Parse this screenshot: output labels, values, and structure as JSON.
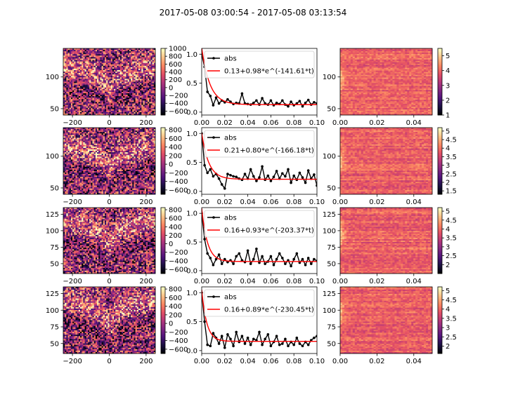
{
  "figure": {
    "suptitle": "2017-05-08 03:00:54 - 2017-05-08 03:13:54"
  },
  "colormap": {
    "name": "magma",
    "stops": [
      "#000004",
      "#1c1044",
      "#4f127b",
      "#812581",
      "#b5367a",
      "#e55064",
      "#fb8761",
      "#fec287",
      "#fcfdbf"
    ]
  },
  "chart_data": [
    {
      "type": "heatmap",
      "row": 0,
      "col": 0,
      "xlim": [
        -250,
        250
      ],
      "ylim": [
        40,
        145
      ],
      "xticks": [
        -200,
        0,
        200
      ],
      "yticks": [
        50,
        100
      ],
      "colorbar": {
        "vmin": -700,
        "vmax": 1000,
        "ticks": [
          -600,
          -400,
          -200,
          0,
          200,
          400,
          600,
          800,
          1000
        ]
      }
    },
    {
      "type": "line",
      "row": 0,
      "col": 1,
      "xlim": [
        0,
        0.1
      ],
      "ylim": [
        -0.05,
        1.1
      ],
      "xticks": [
        "0.00",
        "0.02",
        "0.04",
        "0.06",
        "0.08",
        "0.10"
      ],
      "yticks": [
        "0.0",
        "0.5",
        "1.0"
      ],
      "series": [
        {
          "name": "abs",
          "color": "#000000",
          "marker": "o",
          "x": [
            0.0,
            0.0025,
            0.005,
            0.0075,
            0.01,
            0.0125,
            0.015,
            0.0175,
            0.02,
            0.0225,
            0.025,
            0.0275,
            0.03,
            0.0325,
            0.035,
            0.0375,
            0.04,
            0.0425,
            0.045,
            0.0475,
            0.05,
            0.0525,
            0.055,
            0.0575,
            0.06,
            0.0625,
            0.065,
            0.0675,
            0.07,
            0.0725,
            0.075,
            0.0775,
            0.08,
            0.0825,
            0.085,
            0.0875,
            0.09,
            0.0925,
            0.095,
            0.0975,
            0.1
          ],
          "y": [
            1.0,
            0.78,
            0.35,
            0.28,
            0.12,
            0.25,
            0.15,
            0.2,
            0.17,
            0.22,
            0.18,
            0.14,
            0.16,
            0.15,
            0.32,
            0.15,
            0.14,
            0.13,
            0.16,
            0.2,
            0.13,
            0.24,
            0.15,
            0.13,
            0.2,
            0.12,
            0.16,
            0.14,
            0.2,
            0.13,
            0.1,
            0.18,
            0.12,
            0.15,
            0.19,
            0.1,
            0.16,
            0.21,
            0.13,
            0.17,
            0.15
          ]
        },
        {
          "name": "0.13+0.98*e^(-141.61*t)",
          "color": "#ff0000",
          "fit": {
            "a": 0.13,
            "b": 0.98,
            "k": 141.61
          }
        }
      ]
    },
    {
      "type": "heatmap",
      "row": 0,
      "col": 2,
      "xlim": [
        0,
        0.05
      ],
      "ylim": [
        40,
        145
      ],
      "xticks": [
        "0.00",
        "0.02",
        "0.04"
      ],
      "yticks": [
        50,
        100
      ],
      "colorbar": {
        "vmin": 1,
        "vmax": 5.5,
        "ticks": [
          1,
          2,
          3,
          4,
          5
        ]
      }
    },
    {
      "type": "heatmap",
      "row": 1,
      "col": 0,
      "xlim": [
        -250,
        250
      ],
      "ylim": [
        40,
        145
      ],
      "xticks": [
        -200,
        0,
        200
      ],
      "yticks": [
        50,
        100
      ],
      "colorbar": {
        "vmin": -700,
        "vmax": 850,
        "ticks": [
          -600,
          -400,
          -200,
          0,
          200,
          400,
          600,
          800
        ]
      }
    },
    {
      "type": "line",
      "row": 1,
      "col": 1,
      "xlim": [
        0,
        0.1
      ],
      "ylim": [
        -0.05,
        1.1
      ],
      "xticks": [
        "0.00",
        "0.02",
        "0.04",
        "0.06",
        "0.08",
        "0.10"
      ],
      "yticks": [
        "0.0",
        "0.5",
        "1.0"
      ],
      "series": [
        {
          "name": "abs",
          "color": "#000000",
          "marker": "o",
          "x": [
            0.0,
            0.0025,
            0.005,
            0.0075,
            0.01,
            0.0125,
            0.015,
            0.0175,
            0.02,
            0.0225,
            0.025,
            0.0275,
            0.03,
            0.0325,
            0.035,
            0.0375,
            0.04,
            0.0425,
            0.045,
            0.0475,
            0.05,
            0.0525,
            0.055,
            0.0575,
            0.06,
            0.0625,
            0.065,
            0.0675,
            0.07,
            0.0725,
            0.075,
            0.0775,
            0.08,
            0.0825,
            0.085,
            0.0875,
            0.09,
            0.0925,
            0.095,
            0.0975,
            0.1
          ],
          "y": [
            1.0,
            0.45,
            0.32,
            0.38,
            0.26,
            0.3,
            0.22,
            0.12,
            0.05,
            0.3,
            0.28,
            0.26,
            0.25,
            0.22,
            0.2,
            0.3,
            0.22,
            0.38,
            0.26,
            0.18,
            0.24,
            0.43,
            0.2,
            0.27,
            0.18,
            0.25,
            0.35,
            0.22,
            0.31,
            0.26,
            0.38,
            0.15,
            0.27,
            0.2,
            0.32,
            0.24,
            0.15,
            0.36,
            0.22,
            0.29,
            0.1
          ]
        },
        {
          "name": "0.21+0.80*e^(-166.18*t)",
          "color": "#ff0000",
          "fit": {
            "a": 0.21,
            "b": 0.8,
            "k": 166.18
          }
        }
      ]
    },
    {
      "type": "heatmap",
      "row": 1,
      "col": 2,
      "xlim": [
        0,
        0.05
      ],
      "ylim": [
        40,
        145
      ],
      "xticks": [
        "0.00",
        "0.02",
        "0.04"
      ],
      "yticks": [
        50,
        100
      ],
      "colorbar": {
        "vmin": 1.3,
        "vmax": 5.2,
        "ticks": [
          1.5,
          2.0,
          2.5,
          3.0,
          3.5,
          4.0,
          4.5,
          5.0
        ]
      }
    },
    {
      "type": "heatmap",
      "row": 2,
      "col": 0,
      "xlim": [
        -250,
        250
      ],
      "ylim": [
        35,
        135
      ],
      "xticks": [
        -200,
        0,
        200
      ],
      "yticks": [
        50,
        75,
        100,
        125
      ],
      "colorbar": {
        "vmin": -700,
        "vmax": 850,
        "ticks": [
          -600,
          -400,
          -200,
          0,
          200,
          400,
          600,
          800
        ]
      }
    },
    {
      "type": "line",
      "row": 2,
      "col": 1,
      "xlim": [
        0,
        0.1
      ],
      "ylim": [
        -0.05,
        1.1
      ],
      "xticks": [
        "0.00",
        "0.02",
        "0.04",
        "0.06",
        "0.08",
        "0.10"
      ],
      "yticks": [
        "0.0",
        "0.5",
        "1.0"
      ],
      "series": [
        {
          "name": "abs",
          "color": "#000000",
          "marker": "o",
          "x": [
            0.0,
            0.0025,
            0.005,
            0.0075,
            0.01,
            0.0125,
            0.015,
            0.0175,
            0.02,
            0.0225,
            0.025,
            0.0275,
            0.03,
            0.0325,
            0.035,
            0.0375,
            0.04,
            0.0425,
            0.045,
            0.0475,
            0.05,
            0.0525,
            0.055,
            0.0575,
            0.06,
            0.0625,
            0.065,
            0.0675,
            0.07,
            0.0725,
            0.075,
            0.0775,
            0.08,
            0.0825,
            0.085,
            0.0875,
            0.09,
            0.0925,
            0.095,
            0.0975,
            0.1
          ],
          "y": [
            1.0,
            0.55,
            0.3,
            0.22,
            0.1,
            0.2,
            0.28,
            0.12,
            0.2,
            0.15,
            0.18,
            0.12,
            0.25,
            0.3,
            0.18,
            0.15,
            0.35,
            0.12,
            0.2,
            0.38,
            0.14,
            0.25,
            0.12,
            0.16,
            0.25,
            0.1,
            0.2,
            0.3,
            0.22,
            0.12,
            0.18,
            0.08,
            0.2,
            0.3,
            0.14,
            0.2,
            0.1,
            0.22,
            0.12,
            0.2,
            0.17
          ]
        },
        {
          "name": "0.16+0.93*e^(-203.37*t)",
          "color": "#ff0000",
          "fit": {
            "a": 0.16,
            "b": 0.93,
            "k": 203.37
          }
        }
      ]
    },
    {
      "type": "heatmap",
      "row": 2,
      "col": 2,
      "xlim": [
        0,
        0.05
      ],
      "ylim": [
        35,
        135
      ],
      "xticks": [
        "0.00",
        "0.02",
        "0.04"
      ],
      "yticks": [
        50,
        75,
        100,
        125
      ],
      "colorbar": {
        "vmin": 1.5,
        "vmax": 5.2,
        "ticks": [
          2.0,
          2.5,
          3.0,
          3.5,
          4.0,
          4.5,
          5.0
        ]
      }
    },
    {
      "type": "heatmap",
      "row": 3,
      "col": 0,
      "xlim": [
        -250,
        250
      ],
      "ylim": [
        35,
        135
      ],
      "xticks": [
        -200,
        0,
        200
      ],
      "yticks": [
        50,
        75,
        100,
        125
      ],
      "colorbar": {
        "vmin": -700,
        "vmax": 850,
        "ticks": [
          -600,
          -400,
          -200,
          0,
          200,
          400,
          600,
          800
        ]
      }
    },
    {
      "type": "line",
      "row": 3,
      "col": 1,
      "xlim": [
        0,
        0.1
      ],
      "ylim": [
        -0.05,
        1.1
      ],
      "xticks": [
        "0.00",
        "0.02",
        "0.04",
        "0.06",
        "0.08",
        "0.10"
      ],
      "yticks": [
        "0.0",
        "0.5",
        "1.0"
      ],
      "series": [
        {
          "name": "abs",
          "color": "#000000",
          "marker": "o",
          "x": [
            0.0,
            0.0025,
            0.005,
            0.0075,
            0.01,
            0.0125,
            0.015,
            0.0175,
            0.02,
            0.0225,
            0.025,
            0.0275,
            0.03,
            0.0325,
            0.035,
            0.0375,
            0.04,
            0.0425,
            0.045,
            0.0475,
            0.05,
            0.0525,
            0.055,
            0.0575,
            0.06,
            0.0625,
            0.065,
            0.0675,
            0.07,
            0.0725,
            0.075,
            0.0775,
            0.08,
            0.0825,
            0.085,
            0.0875,
            0.09,
            0.0925,
            0.095,
            0.0975,
            0.1
          ],
          "y": [
            1.0,
            0.5,
            0.1,
            0.08,
            0.3,
            0.22,
            0.12,
            0.25,
            0.05,
            0.28,
            0.2,
            0.08,
            0.32,
            0.15,
            0.25,
            0.12,
            0.22,
            0.1,
            0.2,
            0.18,
            0.32,
            0.1,
            0.2,
            0.28,
            0.08,
            0.15,
            0.25,
            0.1,
            0.12,
            0.2,
            0.08,
            0.15,
            0.1,
            0.22,
            0.12,
            0.08,
            0.15,
            0.1,
            0.18,
            0.22,
            0.25
          ]
        },
        {
          "name": "0.16+0.89*e^(-230.45*t)",
          "color": "#ff0000",
          "fit": {
            "a": 0.16,
            "b": 0.89,
            "k": 230.45
          }
        }
      ]
    },
    {
      "type": "heatmap",
      "row": 3,
      "col": 2,
      "xlim": [
        0,
        0.05
      ],
      "ylim": [
        35,
        135
      ],
      "xticks": [
        "0.00",
        "0.02",
        "0.04"
      ],
      "yticks": [
        50,
        75,
        100,
        125
      ],
      "colorbar": {
        "vmin": 1.6,
        "vmax": 5.2,
        "ticks": [
          2.0,
          2.5,
          3.0,
          3.5,
          4.0,
          4.5,
          5.0
        ]
      }
    }
  ]
}
